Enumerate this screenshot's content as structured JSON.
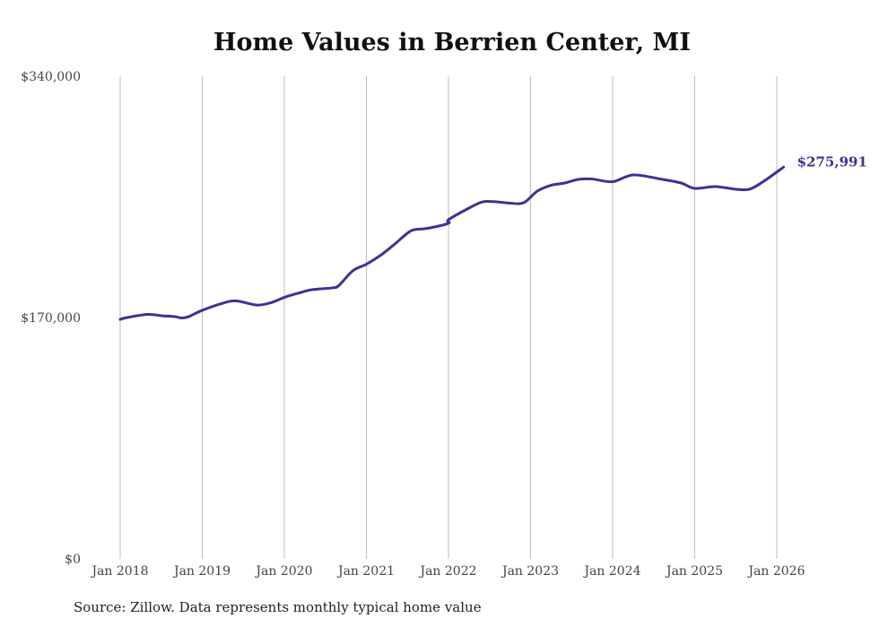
{
  "chart_data": {
    "type": "line",
    "title": "Home Values in Berrien Center, MI",
    "source": "Source: Zillow. Data represents monthly typical home value",
    "xlabel": "",
    "ylabel": "",
    "ylim": [
      0,
      340000
    ],
    "yticks": [
      0,
      170000,
      340000
    ],
    "ytick_labels": [
      "$0",
      "$170,000",
      "$340,000"
    ],
    "xticks": [
      "2018-01",
      "2019-01",
      "2020-01",
      "2021-01",
      "2022-01",
      "2023-01",
      "2024-01",
      "2025-01",
      "2026-01"
    ],
    "xtick_labels": [
      "Jan 2018",
      "Jan 2019",
      "Jan 2020",
      "Jan 2021",
      "Jan 2022",
      "Jan 2023",
      "Jan 2024",
      "Jan 2025",
      "Jan 2026"
    ],
    "grid": "vertical",
    "line_color": "#3b3394",
    "end_label": "$275,991",
    "series": [
      {
        "name": "Typical home value",
        "x": [
          "2018-01",
          "2018-02",
          "2018-05",
          "2018-07",
          "2018-09",
          "2018-10",
          "2018-11",
          "2019-01",
          "2019-04",
          "2019-06",
          "2019-09",
          "2019-11",
          "2020-01",
          "2020-03",
          "2020-05",
          "2020-08",
          "2020-09",
          "2020-11",
          "2021-01",
          "2021-03",
          "2021-05",
          "2021-07",
          "2021-08",
          "2021-10",
          "2022-01",
          "2022-01",
          "2022-04",
          "2022-06",
          "2022-08",
          "2022-10",
          "2022-12",
          "2023-02",
          "2023-04",
          "2023-06",
          "2023-08",
          "2023-10",
          "2024-01",
          "2024-04",
          "2024-08",
          "2024-11",
          "2025-01",
          "2025-04",
          "2025-07",
          "2025-09",
          "2025-11",
          "2026-02"
        ],
        "values": [
          168700,
          170000,
          172200,
          171300,
          170600,
          169700,
          170600,
          175100,
          180100,
          181700,
          178800,
          180400,
          184200,
          187100,
          189600,
          190900,
          192700,
          202900,
          207600,
          213600,
          221200,
          229400,
          231900,
          232900,
          236400,
          238900,
          247100,
          251500,
          251500,
          250600,
          250900,
          259100,
          263200,
          264800,
          267300,
          267600,
          265700,
          270500,
          267600,
          264800,
          261000,
          262300,
          260400,
          260400,
          265700,
          275991
        ]
      }
    ]
  }
}
